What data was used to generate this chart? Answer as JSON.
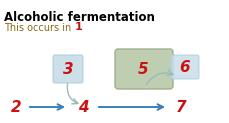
{
  "title": "Alcoholic fermentation",
  "subtitle": "This occurs in",
  "subtitle_color": "#8B6914",
  "title_color": "#000000",
  "red_color": "#CC1111",
  "blue_arrow_color": "#3B7FBB",
  "box1_facecolor": "#C8DDE8",
  "box1_edgecolor": "#AACCDD",
  "box2_facecolor": "#B8C9A8",
  "box2_edgecolor": "#99AA88",
  "box3_facecolor": "#C8DDE8",
  "box3_edgecolor": "#AACCDD",
  "curve_arrow_color": "#99BBBB",
  "bg_color": "#FFFFFF"
}
